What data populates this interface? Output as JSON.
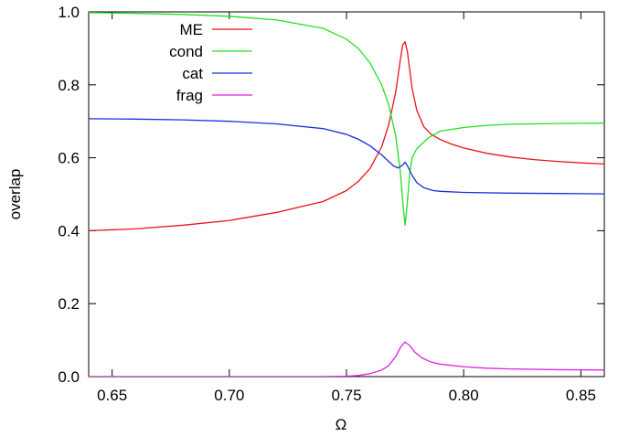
{
  "chart_data": {
    "type": "line",
    "xlabel": "Ω",
    "ylabel": "overlap",
    "xlim": [
      0.64,
      0.86
    ],
    "ylim": [
      0.0,
      1.0
    ],
    "xticks": [
      "0.65",
      "0.70",
      "0.75",
      "0.80",
      "0.85"
    ],
    "yticks": [
      "0.0",
      "0.2",
      "0.4",
      "0.6",
      "0.8",
      "1.0"
    ],
    "grid": false,
    "legend": "top-left",
    "series": [
      {
        "name": "ME",
        "color": "#e8141a",
        "x": [
          0.64,
          0.66,
          0.68,
          0.7,
          0.72,
          0.74,
          0.75,
          0.755,
          0.76,
          0.765,
          0.768,
          0.771,
          0.773,
          0.774,
          0.775,
          0.776,
          0.777,
          0.778,
          0.78,
          0.783,
          0.786,
          0.79,
          0.795,
          0.8,
          0.81,
          0.82,
          0.83,
          0.84,
          0.85,
          0.86
        ],
        "y": [
          0.4,
          0.405,
          0.415,
          0.428,
          0.45,
          0.48,
          0.51,
          0.535,
          0.57,
          0.63,
          0.69,
          0.78,
          0.87,
          0.91,
          0.918,
          0.89,
          0.84,
          0.79,
          0.73,
          0.685,
          0.665,
          0.65,
          0.637,
          0.627,
          0.612,
          0.602,
          0.595,
          0.59,
          0.586,
          0.583
        ]
      },
      {
        "name": "cond",
        "color": "#21e021",
        "x": [
          0.64,
          0.66,
          0.68,
          0.7,
          0.72,
          0.74,
          0.75,
          0.755,
          0.76,
          0.765,
          0.768,
          0.771,
          0.773,
          0.774,
          0.775,
          0.776,
          0.777,
          0.778,
          0.78,
          0.785,
          0.79,
          0.8,
          0.81,
          0.82,
          0.84,
          0.86
        ],
        "y": [
          0.998,
          0.996,
          0.993,
          0.988,
          0.978,
          0.955,
          0.925,
          0.9,
          0.86,
          0.8,
          0.745,
          0.66,
          0.56,
          0.48,
          0.415,
          0.48,
          0.56,
          0.6,
          0.625,
          0.655,
          0.673,
          0.683,
          0.689,
          0.692,
          0.694,
          0.695
        ]
      },
      {
        "name": "cat",
        "color": "#1a2fd6",
        "x": [
          0.64,
          0.66,
          0.68,
          0.7,
          0.72,
          0.74,
          0.75,
          0.755,
          0.76,
          0.765,
          0.77,
          0.772,
          0.774,
          0.775,
          0.776,
          0.778,
          0.78,
          0.783,
          0.787,
          0.79,
          0.8,
          0.82,
          0.84,
          0.86
        ],
        "y": [
          0.707,
          0.706,
          0.704,
          0.7,
          0.693,
          0.68,
          0.664,
          0.651,
          0.633,
          0.608,
          0.578,
          0.572,
          0.58,
          0.588,
          0.578,
          0.552,
          0.532,
          0.518,
          0.51,
          0.508,
          0.505,
          0.503,
          0.502,
          0.501
        ]
      },
      {
        "name": "frag",
        "color": "#e020e0",
        "x": [
          0.64,
          0.7,
          0.74,
          0.75,
          0.755,
          0.76,
          0.765,
          0.768,
          0.771,
          0.773,
          0.775,
          0.777,
          0.779,
          0.782,
          0.786,
          0.79,
          0.8,
          0.81,
          0.82,
          0.84,
          0.86
        ],
        "y": [
          0.0,
          0.0,
          0.0,
          0.001,
          0.003,
          0.008,
          0.018,
          0.03,
          0.055,
          0.08,
          0.095,
          0.085,
          0.068,
          0.052,
          0.04,
          0.034,
          0.027,
          0.023,
          0.021,
          0.019,
          0.018
        ]
      }
    ]
  }
}
